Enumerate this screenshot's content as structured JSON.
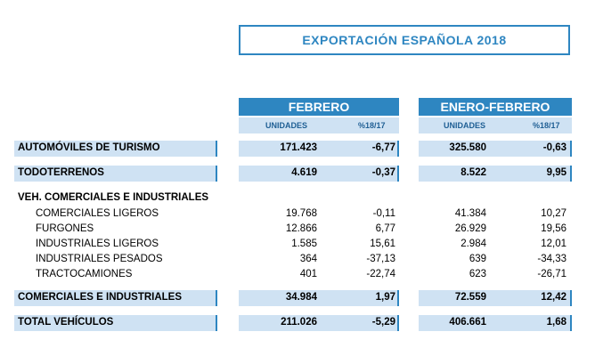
{
  "title": "EXPORTACIÓN ESPAÑOLA 2018",
  "periods": [
    "FEBRERO",
    "ENERO-FEBRERO"
  ],
  "subheaders": [
    "UNIDADES",
    "%18/17",
    "UNIDADES",
    "%18/17"
  ],
  "rows": [
    {
      "label": "AUTOMÓVILES DE TURISMO",
      "v": [
        "171.423",
        "-6,77",
        "325.580",
        "-0,63"
      ]
    },
    {
      "label": "TODOTERRENOS",
      "v": [
        "4.619",
        "-0,37",
        "8.522",
        "9,95"
      ]
    },
    {
      "label": "VEH. COMERCIALES E INDUSTRIALES"
    },
    {
      "label": "COMERCIALES LIGEROS",
      "v": [
        "19.768",
        "-0,11",
        "41.384",
        "10,27"
      ]
    },
    {
      "label": "FURGONES",
      "v": [
        "12.866",
        "6,77",
        "26.929",
        "19,56"
      ]
    },
    {
      "label": "INDUSTRIALES LIGEROS",
      "v": [
        "1.585",
        "15,61",
        "2.984",
        "12,01"
      ]
    },
    {
      "label": "INDUSTRIALES PESADOS",
      "v": [
        "364",
        "-37,13",
        "639",
        "-34,33"
      ]
    },
    {
      "label": "TRACTOCAMIONES",
      "v": [
        "401",
        "-22,74",
        "623",
        "-26,71"
      ]
    },
    {
      "label": "COMERCIALES E INDUSTRIALES",
      "v": [
        "34.984",
        "1,97",
        "72.559",
        "12,42"
      ]
    },
    {
      "label": "TOTAL VEHÍCULOS",
      "v": [
        "211.026",
        "-5,29",
        "406.661",
        "1,68"
      ]
    }
  ]
}
